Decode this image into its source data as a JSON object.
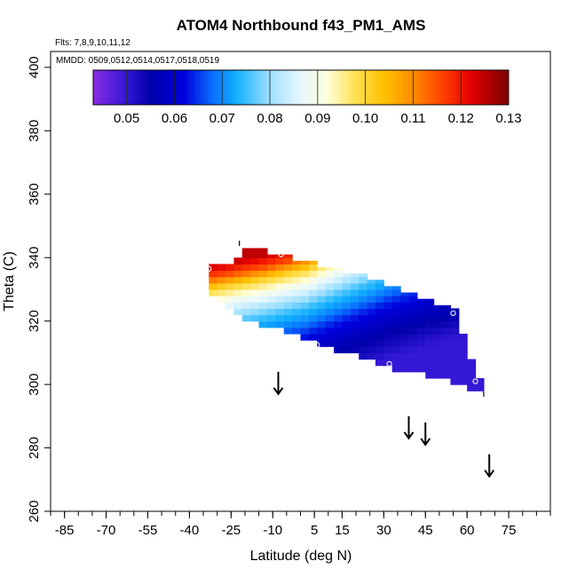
{
  "chart_data": {
    "type": "heatmap",
    "title": "ATOM4 Northbound f43_PM1_AMS",
    "flights_label": "Flts: 7,8,9,10,11,12",
    "dates_label": "MMDD: 0509,0512,0514,0517,0518,0519",
    "xlabel": "Latitude (deg N)",
    "ylabel": "Theta (C)",
    "xlim": [
      -90,
      90
    ],
    "ylim": [
      260,
      405
    ],
    "x_ticks": [
      "-85",
      "-70",
      "-55",
      "-40",
      "-25",
      "-10",
      "5",
      "15",
      "30",
      "45",
      "60",
      "75"
    ],
    "x_tick_values": [
      -85,
      -70,
      -55,
      -40,
      -25,
      -10,
      5,
      15,
      30,
      45,
      60,
      75
    ],
    "x_minor_step": 5,
    "y_ticks": [
      "260",
      "280",
      "300",
      "320",
      "340",
      "360",
      "380",
      "400"
    ],
    "y_tick_values": [
      260,
      280,
      300,
      320,
      340,
      360,
      380,
      400
    ],
    "colorbar": {
      "ticks": [
        "0.05",
        "0.06",
        "0.07",
        "0.08",
        "0.09",
        "0.10",
        "0.11",
        "0.12",
        "0.13"
      ],
      "tick_values": [
        0.05,
        0.06,
        0.07,
        0.08,
        0.09,
        0.1,
        0.11,
        0.12,
        0.13
      ],
      "range": [
        0.043,
        0.13
      ],
      "stops": [
        [
          0.043,
          "#8a2be2"
        ],
        [
          0.05,
          "#3318d6"
        ],
        [
          0.055,
          "#0000aa"
        ],
        [
          0.062,
          "#0000dd"
        ],
        [
          0.068,
          "#0a6eff"
        ],
        [
          0.073,
          "#11b0ff"
        ],
        [
          0.08,
          "#9ee0ff"
        ],
        [
          0.086,
          "#e4f6ff"
        ],
        [
          0.092,
          "#ffffdd"
        ],
        [
          0.098,
          "#ffe050"
        ],
        [
          0.104,
          "#ffc000"
        ],
        [
          0.11,
          "#ff8a00"
        ],
        [
          0.116,
          "#ff4400"
        ],
        [
          0.122,
          "#e60000"
        ],
        [
          0.13,
          "#7a0000"
        ]
      ]
    },
    "field": {
      "lat_step": 3,
      "theta_step": 2,
      "columns": [
        {
          "lat": -33,
          "theta_bottom": 328,
          "theta_top": 338
        },
        {
          "lat": -30,
          "theta_bottom": 326,
          "theta_top": 338
        },
        {
          "lat": -27,
          "theta_bottom": 324,
          "theta_top": 338
        },
        {
          "lat": -24,
          "theta_bottom": 322,
          "theta_top": 340
        },
        {
          "lat": -21,
          "theta_bottom": 320,
          "theta_top": 343
        },
        {
          "lat": -18,
          "theta_bottom": 320,
          "theta_top": 343
        },
        {
          "lat": -15,
          "theta_bottom": 318,
          "theta_top": 343
        },
        {
          "lat": -12,
          "theta_bottom": 318,
          "theta_top": 341
        },
        {
          "lat": -9,
          "theta_bottom": 318,
          "theta_top": 341
        },
        {
          "lat": -6,
          "theta_bottom": 316,
          "theta_top": 341
        },
        {
          "lat": -3,
          "theta_bottom": 316,
          "theta_top": 339
        },
        {
          "lat": 0,
          "theta_bottom": 314,
          "theta_top": 339
        },
        {
          "lat": 3,
          "theta_bottom": 314,
          "theta_top": 339
        },
        {
          "lat": 6,
          "theta_bottom": 312,
          "theta_top": 337
        },
        {
          "lat": 9,
          "theta_bottom": 312,
          "theta_top": 337
        },
        {
          "lat": 12,
          "theta_bottom": 310,
          "theta_top": 337
        },
        {
          "lat": 15,
          "theta_bottom": 310,
          "theta_top": 335
        },
        {
          "lat": 18,
          "theta_bottom": 310,
          "theta_top": 335
        },
        {
          "lat": 21,
          "theta_bottom": 308,
          "theta_top": 335
        },
        {
          "lat": 24,
          "theta_bottom": 308,
          "theta_top": 333
        },
        {
          "lat": 27,
          "theta_bottom": 306,
          "theta_top": 333
        },
        {
          "lat": 30,
          "theta_bottom": 306,
          "theta_top": 331
        },
        {
          "lat": 33,
          "theta_bottom": 304,
          "theta_top": 331
        },
        {
          "lat": 36,
          "theta_bottom": 304,
          "theta_top": 329
        },
        {
          "lat": 39,
          "theta_bottom": 304,
          "theta_top": 329
        },
        {
          "lat": 42,
          "theta_bottom": 304,
          "theta_top": 327
        },
        {
          "lat": 45,
          "theta_bottom": 302,
          "theta_top": 327
        },
        {
          "lat": 48,
          "theta_bottom": 302,
          "theta_top": 325
        },
        {
          "lat": 51,
          "theta_bottom": 302,
          "theta_top": 325
        },
        {
          "lat": 54,
          "theta_bottom": 300,
          "theta_top": 324
        },
        {
          "lat": 57,
          "theta_bottom": 300,
          "theta_top": 316
        },
        {
          "lat": 60,
          "theta_bottom": 298,
          "theta_top": 308
        },
        {
          "lat": 63,
          "theta_bottom": 298,
          "theta_top": 302
        }
      ],
      "profile": [
        {
          "theta": 298,
          "value": 0.05
        },
        {
          "theta": 306,
          "value": 0.055
        },
        {
          "theta": 312,
          "value": 0.06
        },
        {
          "theta": 316,
          "value": 0.064
        },
        {
          "theta": 320,
          "value": 0.07
        },
        {
          "theta": 324,
          "value": 0.075
        },
        {
          "theta": 328,
          "value": 0.082
        },
        {
          "theta": 332,
          "value": 0.09
        },
        {
          "theta": 336,
          "value": 0.1
        },
        {
          "theta": 340,
          "value": 0.115
        },
        {
          "theta": 344,
          "value": 0.125
        }
      ],
      "column_shift": [
        {
          "lat": -33,
          "dtheta": 6
        },
        {
          "lat": -15,
          "dtheta": 3
        },
        {
          "lat": 0,
          "dtheta": 0
        },
        {
          "lat": 15,
          "dtheta": -5
        },
        {
          "lat": 30,
          "dtheta": -10
        },
        {
          "lat": 45,
          "dtheta": -14
        },
        {
          "lat": 63,
          "dtheta": -18
        }
      ]
    },
    "flight_markers": [
      {
        "lat": -33,
        "theta": 336.5
      },
      {
        "lat": -7,
        "theta": 341
      },
      {
        "lat": 6,
        "theta": 312.5
      },
      {
        "lat": 32,
        "theta": 306.5
      },
      {
        "lat": 55,
        "theta": 322.5
      },
      {
        "lat": 63,
        "theta": 301
      }
    ],
    "tick_marks": [
      {
        "lat": -22,
        "theta": 344.5
      },
      {
        "lat": 66,
        "theta": 297
      }
    ],
    "arrows": [
      {
        "lat": -8,
        "theta_start": 304,
        "theta_end": 297
      },
      {
        "lat": 39,
        "theta_start": 290,
        "theta_end": 283
      },
      {
        "lat": 45,
        "theta_start": 288,
        "theta_end": 281
      },
      {
        "lat": 68,
        "theta_start": 278,
        "theta_end": 271
      }
    ]
  }
}
